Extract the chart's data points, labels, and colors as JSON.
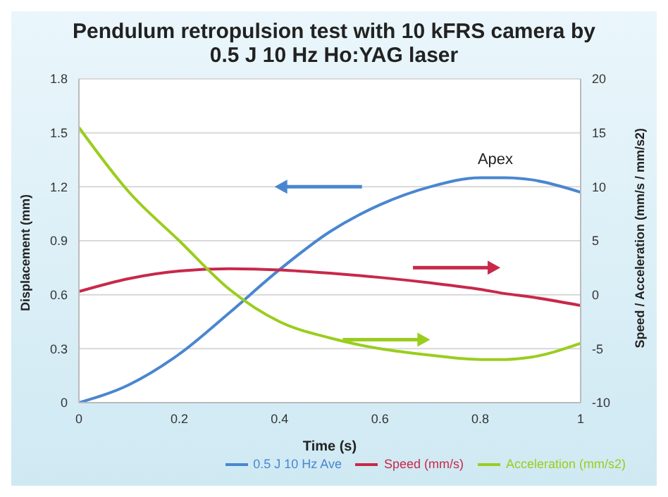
{
  "chart_data": {
    "type": "line",
    "title": "Pendulum retropulsion test with 10 kFRS camera by 0.5 J 10 Hz Ho:YAG laser",
    "xlabel": "Time (s)",
    "ylabel": "Displacement (mm)",
    "y2label": "Speed / Acceleration (mm/s / mm/s2)",
    "x": [
      0,
      0.1,
      0.2,
      0.3,
      0.4,
      0.5,
      0.6,
      0.7,
      0.8,
      0.85,
      0.9,
      1
    ],
    "series": [
      {
        "name": "0.5 J 10 Hz Ave",
        "color": "#4a86d0",
        "values": [
          0,
          0.1,
          0.27,
          0.5,
          0.74,
          0.95,
          1.1,
          1.2,
          1.25,
          1.25,
          1.24,
          1.17
        ]
      },
      {
        "name": "Speed (mm/s)",
        "color": "#c8284a",
        "axis": "y2",
        "values": [
          0.3,
          1.5,
          2.2,
          2.4,
          2.3,
          2.0,
          1.6,
          1.1,
          0.5,
          0.1,
          -0.2,
          -1
        ]
      },
      {
        "name": "Acceleration  (mm/s2)",
        "color": "#9acd1e",
        "axis": "y2",
        "values": [
          15.5,
          9.5,
          5,
          0.5,
          -2.5,
          -4,
          -5,
          -5.6,
          -6,
          -6,
          -5.8,
          -4.5
        ]
      }
    ],
    "xlim": [
      0,
      1
    ],
    "xticks": [
      0,
      0.2,
      0.4,
      0.6,
      0.8,
      1
    ],
    "ylim": [
      0,
      1.8
    ],
    "yticks": [
      0,
      0.3,
      0.6,
      0.9,
      1.2,
      1.5,
      1.8
    ],
    "y2lim": [
      -10,
      20
    ],
    "y2ticks": [
      -10,
      -5,
      0,
      5,
      10,
      15,
      20
    ],
    "annotations": [
      {
        "text": "Apex",
        "x": 0.83,
        "y": 1.25
      }
    ],
    "grid": "y",
    "legend": "bottom",
    "marker": "none",
    "line_style": "solid"
  }
}
